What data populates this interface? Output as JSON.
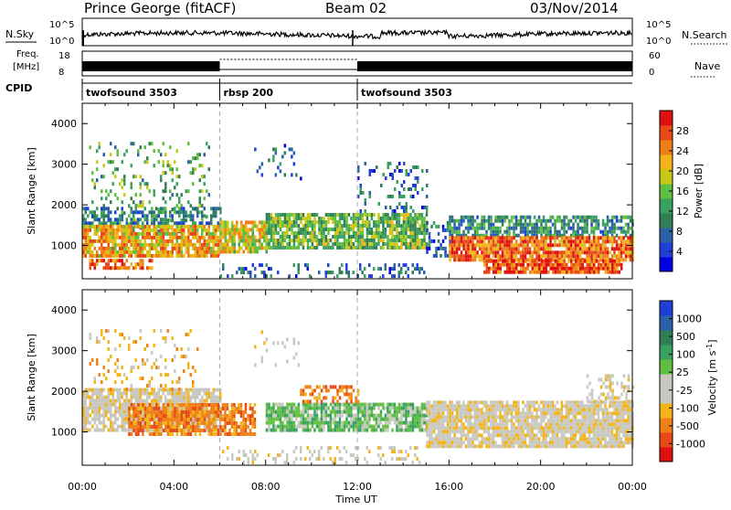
{
  "header": {
    "station": "Prince George (fitACF)",
    "beam": "Beam 02",
    "date": "03/Nov/2014"
  },
  "noise_panel": {
    "left_label": "N.Sky",
    "right_label": "N.Search",
    "left_ticks": [
      "10^5",
      "10^0"
    ],
    "right_ticks": [
      "10^5",
      "10^0"
    ]
  },
  "freq_panel": {
    "left_label_top": "Freq.",
    "left_label_bottom": "[MHz]",
    "left_ticks": [
      "18",
      "8"
    ],
    "right_label": "Nave",
    "right_ticks": [
      "60",
      "0"
    ]
  },
  "cpid": {
    "label": "CPID",
    "segments": [
      {
        "name": "twofsound 3503",
        "start_h": 0,
        "end_h": 6
      },
      {
        "name": "rbsp 200",
        "start_h": 6,
        "end_h": 12
      },
      {
        "name": "twofsound 3503",
        "start_h": 12,
        "end_h": 24
      }
    ]
  },
  "chart_data": [
    {
      "type": "heatmap",
      "quantity": "Power",
      "xlabel": "",
      "ylabel": "Slant Range [km]",
      "xlim": [
        0,
        24
      ],
      "ylim": [
        180,
        4500
      ],
      "y_ticks": [
        "1000",
        "2000",
        "3000",
        "4000"
      ],
      "colorbar_label": "Power [dB]",
      "colorbar_ticks": [
        "4",
        "8",
        "12",
        "16",
        "20",
        "24",
        "28"
      ],
      "colorbar_range": [
        0,
        32
      ],
      "colorscale": [
        "#0000e0",
        "#1f3fd6",
        "#2a60a8",
        "#2f7f54",
        "#39a060",
        "#5fbf3f",
        "#c8c817",
        "#f2b417",
        "#f07f17",
        "#e84a17",
        "#e01010"
      ],
      "regions": [
        {
          "t0": 0.3,
          "t1": 5.5,
          "r0": 1300,
          "r1": 3500,
          "power": 14,
          "density": 0.15
        },
        {
          "t0": 0.0,
          "t1": 6.0,
          "r0": 1500,
          "r1": 1900,
          "power": 9,
          "density": 0.6
        },
        {
          "t0": 0.0,
          "t1": 6.0,
          "r0": 700,
          "r1": 1500,
          "power": 22,
          "density": 0.85
        },
        {
          "t0": 0.3,
          "t1": 3.0,
          "r0": 400,
          "r1": 600,
          "power": 26,
          "density": 0.6
        },
        {
          "t0": 6.0,
          "t1": 8.0,
          "r0": 800,
          "r1": 1600,
          "power": 20,
          "density": 0.8
        },
        {
          "t0": 7.5,
          "t1": 9.5,
          "r0": 2600,
          "r1": 3500,
          "power": 8,
          "density": 0.12
        },
        {
          "t0": 8.0,
          "t1": 15.0,
          "r0": 900,
          "r1": 1800,
          "power": 15,
          "density": 0.85
        },
        {
          "t0": 12.0,
          "t1": 15.0,
          "r0": 1800,
          "r1": 3000,
          "power": 8,
          "density": 0.2
        },
        {
          "t0": 6.0,
          "t1": 15.0,
          "r0": 200,
          "r1": 500,
          "power": 8,
          "density": 0.25
        },
        {
          "t0": 15.0,
          "t1": 16.0,
          "r0": 700,
          "r1": 1600,
          "power": 8,
          "density": 0.4
        },
        {
          "t0": 16.0,
          "t1": 24.0,
          "r0": 1200,
          "r1": 1700,
          "power": 11,
          "density": 0.7
        },
        {
          "t0": 16.0,
          "t1": 24.0,
          "r0": 600,
          "r1": 1200,
          "power": 26,
          "density": 0.9
        },
        {
          "t0": 17.5,
          "t1": 23.5,
          "r0": 300,
          "r1": 600,
          "power": 27,
          "density": 0.85
        }
      ]
    },
    {
      "type": "heatmap",
      "quantity": "Velocity",
      "xlabel": "Time UT",
      "ylabel": "Slant Range [km]",
      "xlim": [
        0,
        24
      ],
      "ylim": [
        180,
        4500
      ],
      "x_ticks": [
        "00:00",
        "04:00",
        "08:00",
        "12:00",
        "16:00",
        "20:00",
        "00:00"
      ],
      "y_ticks": [
        "1000",
        "2000",
        "3000",
        "4000"
      ],
      "colorbar_label": "Velocity [m s",
      "colorbar_label_sup": "-1",
      "colorbar_label_end": "]",
      "colorbar_ticks": [
        "-1000",
        "-500",
        "-100",
        "-25",
        "25",
        "100",
        "500",
        "1000"
      ],
      "colorscale": [
        "#e01010",
        "#e84a17",
        "#f07f17",
        "#f2b417",
        "#c8c8c0",
        "#c8c8c0",
        "#5fbf3f",
        "#39a060",
        "#2f7f54",
        "#2a60a8",
        "#1f3fd6"
      ],
      "regions": [
        {
          "t0": 0.0,
          "t1": 6.0,
          "r0": 1000,
          "r1": 2000,
          "velocity_class": 4,
          "density": 0.85
        },
        {
          "t0": 0.3,
          "t1": 5.0,
          "r0": 2000,
          "r1": 3500,
          "velocity_class": 3,
          "density": 0.15
        },
        {
          "t0": 2.0,
          "t1": 7.5,
          "r0": 900,
          "r1": 1700,
          "velocity_class": 2,
          "density": 0.8
        },
        {
          "t0": 7.5,
          "t1": 9.5,
          "r0": 2600,
          "r1": 3500,
          "velocity_class": 4,
          "density": 0.12
        },
        {
          "t0": 8.0,
          "t1": 15.0,
          "r0": 1000,
          "r1": 1700,
          "velocity_class": 6,
          "density": 0.85
        },
        {
          "t0": 9.5,
          "t1": 12.0,
          "r0": 1700,
          "r1": 2100,
          "velocity_class": 2,
          "density": 0.45
        },
        {
          "t0": 6.0,
          "t1": 15.0,
          "r0": 200,
          "r1": 600,
          "velocity_class": 4,
          "density": 0.2
        },
        {
          "t0": 15.0,
          "t1": 24.0,
          "r0": 600,
          "r1": 1700,
          "velocity_class": 4,
          "density": 0.9
        },
        {
          "t0": 22.0,
          "t1": 24.0,
          "r0": 1700,
          "r1": 2400,
          "velocity_class": 4,
          "density": 0.35
        }
      ]
    }
  ]
}
